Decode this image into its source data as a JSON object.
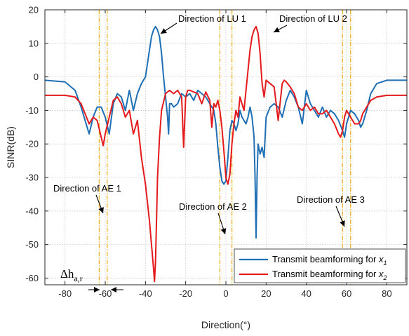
{
  "chart_data": {
    "type": "line",
    "xlabel": "Direction(°)",
    "ylabel": "SINR(dB)",
    "xlim": [
      -90,
      90
    ],
    "ylim": [
      -62,
      20
    ],
    "grid": true,
    "legend_position": "bottom-right",
    "x_ticks": [
      -80,
      -60,
      -40,
      -20,
      0,
      20,
      40,
      60,
      80
    ],
    "y_ticks": [
      20,
      10,
      0,
      -10,
      -20,
      -30,
      -40,
      -50,
      -60
    ],
    "x_tick_labels": [
      "-80",
      "-60",
      "-40",
      "-20",
      "0",
      "20",
      "40",
      "60",
      "80"
    ],
    "y_tick_labels": [
      "20",
      "10",
      "0",
      "-10",
      "-20",
      "-30",
      "-40",
      "-50",
      "-60"
    ],
    "vertical_lines": [
      -63,
      -59,
      -3,
      3,
      58,
      62
    ],
    "series": [
      {
        "name": "Transmit beamforming for x1",
        "legend_label": "Transmit beamforming for",
        "legend_var": "x",
        "legend_sub": "1",
        "color": "#1f6fb5",
        "x": [
          -90,
          -80,
          -75,
          -72,
          -70,
          -68,
          -66,
          -64,
          -62,
          -60,
          -58,
          -56,
          -54,
          -52,
          -50,
          -48,
          -46,
          -44,
          -42,
          -40,
          -38,
          -37,
          -36,
          -35,
          -34,
          -33,
          -32,
          -31,
          -30,
          -29,
          -28.5,
          -28,
          -27,
          -26,
          -24,
          -22,
          -20,
          -18,
          -16,
          -14,
          -12,
          -10,
          -8,
          -6,
          -5,
          -4,
          -3,
          -2,
          -1,
          0,
          1,
          2,
          3,
          4,
          5,
          6,
          7,
          8,
          9,
          10,
          11,
          12,
          13,
          14,
          14.5,
          15,
          15.5,
          16,
          17,
          18,
          19,
          20,
          22,
          24,
          26,
          28,
          30,
          32,
          34,
          36,
          38,
          40,
          42,
          44,
          46,
          48,
          50,
          52,
          54,
          56,
          58,
          59,
          60,
          62,
          64,
          66,
          67,
          68,
          70,
          72,
          75,
          80,
          90
        ],
        "y": [
          -1,
          -1.5,
          -4,
          -9,
          -13,
          -17,
          -12,
          -9,
          -9,
          -12,
          -17,
          -8,
          -5,
          -6,
          -10,
          -4,
          -10,
          -5,
          -2,
          0,
          8,
          12,
          14,
          15,
          14,
          12,
          7,
          0,
          -6,
          -12,
          -17,
          -8,
          -8,
          -9,
          -8,
          -5,
          -6,
          -5,
          -7,
          -4,
          -5,
          -6,
          -8,
          -10,
          -14,
          -21,
          -27,
          -31,
          -32,
          -31,
          -24,
          -16,
          -13,
          -14,
          -16,
          -14,
          -10,
          -12,
          -13,
          -14,
          -12,
          -9,
          -12,
          -18,
          -30,
          -48,
          -30,
          -20,
          -23,
          -21,
          -24,
          -12,
          -9,
          -8,
          -9,
          -12,
          -7,
          -4,
          -6,
          -9,
          -14,
          -4,
          -8,
          -10,
          -12,
          -9,
          -12,
          -10,
          -11,
          -13,
          -16,
          -18,
          -14,
          -10,
          -11,
          -13,
          -15,
          -14,
          -10,
          -5,
          -2,
          -1,
          -1
        ]
      },
      {
        "name": "Transmit beamforming for x2",
        "legend_label": "Transmit beamforming for",
        "legend_var": "x",
        "legend_sub": "2",
        "color": "#e41a1c",
        "x": [
          -90,
          -80,
          -75,
          -72,
          -70,
          -68,
          -66,
          -64,
          -62,
          -61,
          -60,
          -58,
          -56,
          -54,
          -52,
          -50,
          -48,
          -46,
          -44,
          -42,
          -40,
          -38,
          -37,
          -36,
          -35.5,
          -35,
          -34.5,
          -34,
          -33,
          -32,
          -30,
          -28,
          -26,
          -24,
          -22,
          -21,
          -20,
          -19,
          -18,
          -16,
          -14,
          -12,
          -10,
          -8,
          -7,
          -6,
          -5,
          -4,
          -3,
          -2,
          -1,
          0,
          1,
          2,
          3,
          4,
          5,
          6,
          7,
          8,
          9,
          10,
          11,
          12,
          13,
          14,
          15,
          16,
          17,
          18,
          19,
          20,
          22,
          24,
          26,
          28,
          29,
          30,
          32,
          34,
          36,
          38,
          40,
          42,
          44,
          46,
          48,
          50,
          52,
          54,
          56,
          57,
          58,
          59,
          60,
          62,
          64,
          66,
          67,
          68,
          70,
          72,
          75,
          80,
          90
        ],
        "y": [
          -5.5,
          -5.5,
          -6,
          -8,
          -11,
          -14,
          -12,
          -13,
          -18,
          -20.5,
          -17,
          -12,
          -7,
          -6,
          -8,
          -12,
          -10,
          -17,
          -13,
          -24,
          -32,
          -43,
          -50,
          -57,
          -61,
          -55,
          -43,
          -30,
          -18,
          -10,
          -5,
          -4,
          -5,
          -4,
          -6,
          -21,
          -6,
          -4,
          -4,
          -4.5,
          -5,
          -8,
          -4.5,
          -7,
          -15,
          -8,
          -9,
          -7,
          -10,
          -15,
          -22,
          -30,
          -32,
          -29,
          -20,
          -14,
          -10,
          -12,
          -6,
          -8,
          -10,
          -4,
          2,
          8,
          12,
          14,
          15,
          13,
          7,
          -2,
          -6,
          -1,
          -2,
          -3,
          -13,
          -2,
          -1,
          -1.5,
          -3,
          -5,
          -9,
          -10,
          -8,
          -10,
          -9,
          -11,
          -11,
          -10,
          -12,
          -14,
          -17,
          -18,
          -16,
          -12,
          -10,
          -12,
          -14,
          -14,
          -13,
          -11,
          -9,
          -7,
          -6,
          -5.5,
          -5.5
        ]
      }
    ],
    "annotations": [
      {
        "id": "lu1",
        "text": "Direction of LU 1"
      },
      {
        "id": "lu2",
        "text": "Direction of LU 2"
      },
      {
        "id": "ae1",
        "text": "Direction of AE 1"
      },
      {
        "id": "ae2",
        "text": "Direction of AE 2"
      },
      {
        "id": "ae3",
        "text": "Direction of AE 3"
      },
      {
        "id": "delta",
        "text": "Δh",
        "sub": "a,r"
      }
    ],
    "colors": {
      "axis": "#262626",
      "grid": "#c8c8c8",
      "vline": "#edb120",
      "background": "#ffffff"
    }
  }
}
